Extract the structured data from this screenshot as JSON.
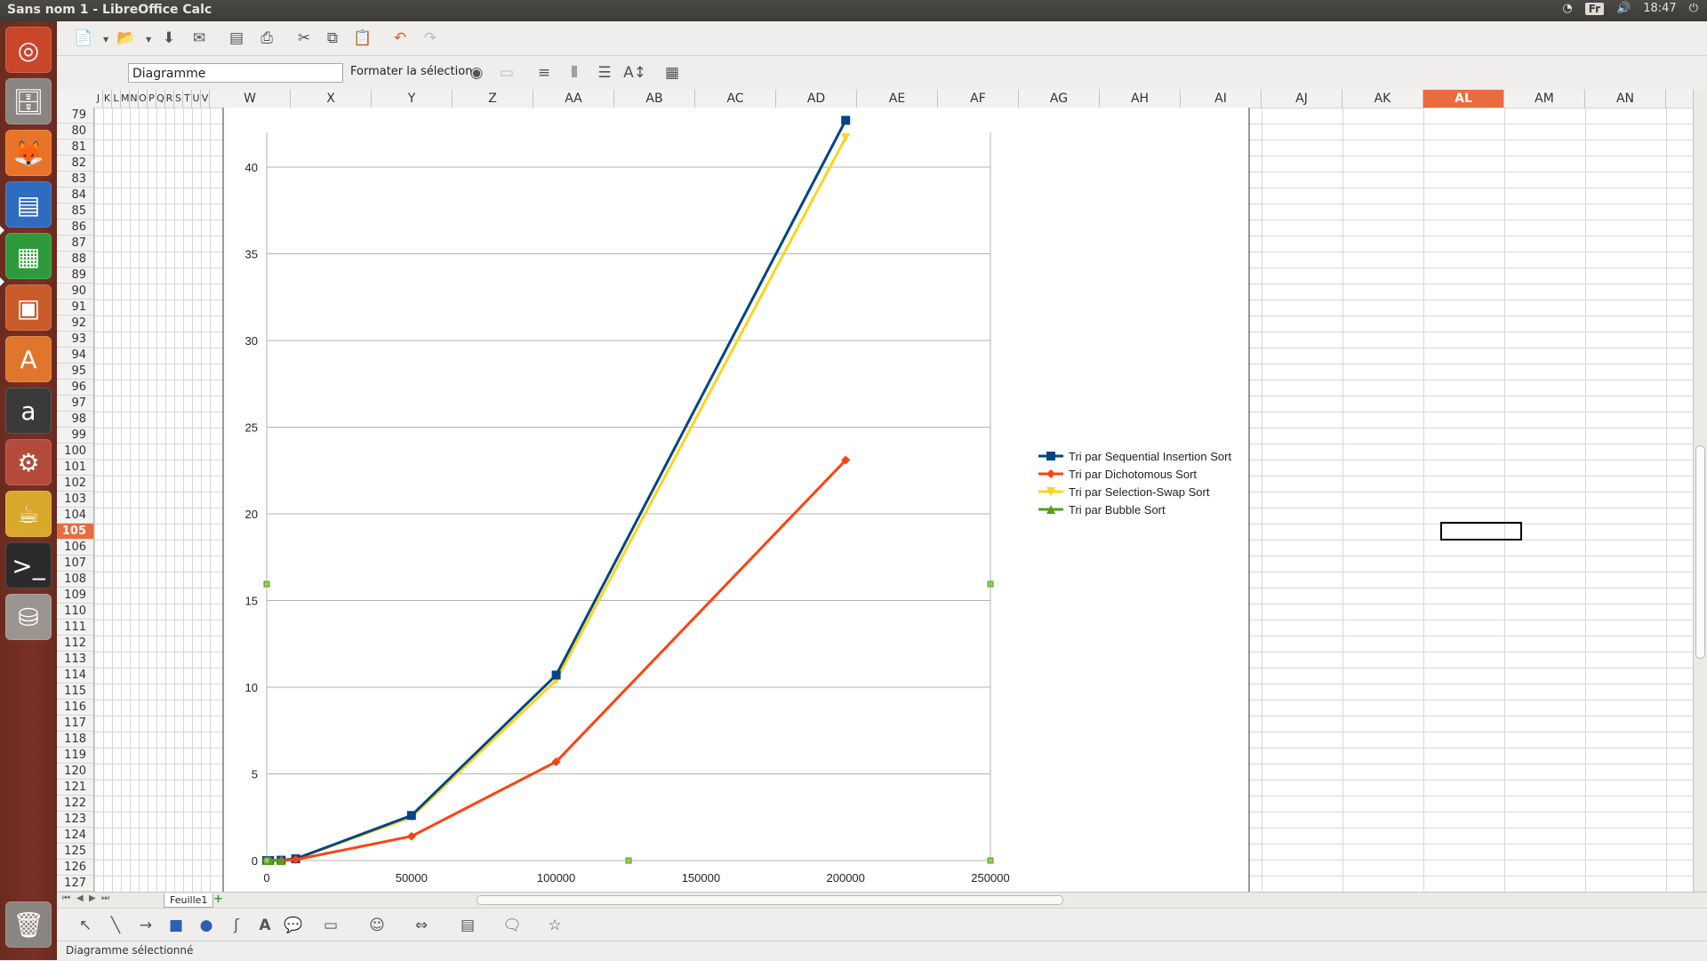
{
  "window": {
    "title": "Sans nom 1 - LibreOffice Calc"
  },
  "tray": {
    "language": "Fr",
    "clock": "18:47"
  },
  "toolbar2": {
    "name_box_value": "Diagramme",
    "format_selection_label": "Formater la sélection"
  },
  "columns": {
    "narrow": [
      "J",
      "K",
      "L",
      "M",
      "N",
      "O",
      "P",
      "Q",
      "R",
      "S",
      "T",
      "U",
      "V"
    ],
    "wide": [
      "W",
      "X",
      "Y",
      "Z",
      "AA",
      "AB",
      "AC",
      "AD",
      "AE",
      "AF",
      "AG",
      "AH",
      "AI",
      "AJ",
      "AK",
      "AL",
      "AM",
      "AN"
    ],
    "active": "AL"
  },
  "rows": {
    "labels": [
      "79",
      "80",
      "81",
      "82",
      "83",
      "84",
      "85",
      "86",
      "87",
      "88",
      "89",
      "90",
      "91",
      "92",
      "93",
      "94",
      "95",
      "96",
      "97",
      "98",
      "99",
      "100",
      "101",
      "102",
      "103",
      "104",
      "105",
      "106",
      "107",
      "108",
      "109",
      "110",
      "111",
      "112",
      "113",
      "114",
      "115",
      "116",
      "117",
      "118",
      "119",
      "120",
      "121",
      "122",
      "123",
      "124",
      "125",
      "126",
      "127"
    ],
    "active": "105"
  },
  "sheet": {
    "tab_label": "Feuille1"
  },
  "status": {
    "text": "Diagramme sélectionné"
  },
  "colors": {
    "insertion": "#004586",
    "dichotomous": "#ff420e",
    "selection": "#ffd320",
    "bubble": "#579d1c",
    "active_header": "#e96b3e"
  },
  "chart_data": {
    "type": "line",
    "title": "",
    "xlabel": "",
    "ylabel": "",
    "xlim": [
      0,
      250000
    ],
    "ylim": [
      0,
      42
    ],
    "x_ticks": [
      0,
      50000,
      100000,
      150000,
      200000,
      250000
    ],
    "y_ticks": [
      0,
      5,
      10,
      15,
      20,
      25,
      30,
      35,
      40
    ],
    "grid": "horizontal",
    "legend_position": "right",
    "series": [
      {
        "name": "Tri par Sequential Insertion Sort",
        "color": "#004586",
        "marker": "square",
        "x": [
          0,
          1000,
          5000,
          10000,
          50000,
          100000,
          200000
        ],
        "y": [
          0,
          0,
          0.02,
          0.1,
          2.6,
          10.7,
          42.7
        ]
      },
      {
        "name": "Tri par Dichotomous Sort",
        "color": "#ff420e",
        "marker": "diamond",
        "x": [
          0,
          1000,
          5000,
          10000,
          50000,
          100000,
          200000
        ],
        "y": [
          0,
          0,
          0.01,
          0.05,
          1.4,
          5.7,
          23.1
        ]
      },
      {
        "name": "Tri par Selection-Swap Sort",
        "color": "#ffd320",
        "marker": "triangle-down",
        "x": [
          0,
          1000,
          5000,
          10000,
          50000,
          100000,
          200000
        ],
        "y": [
          0,
          0,
          0.02,
          0.1,
          2.5,
          10.4,
          41.7
        ]
      },
      {
        "name": "Tri par Bubble Sort",
        "color": "#579d1c",
        "marker": "triangle-up",
        "x": [
          0,
          1000,
          5000
        ],
        "y": [
          0,
          0,
          0
        ]
      }
    ]
  }
}
